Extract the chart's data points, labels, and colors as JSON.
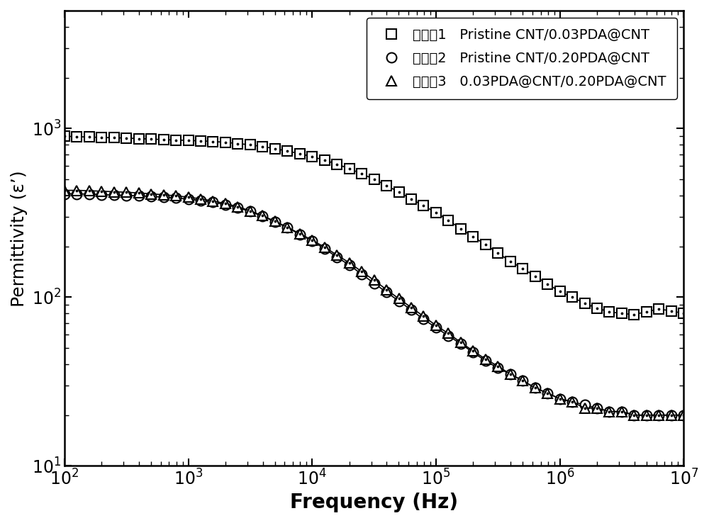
{
  "title": "",
  "xlabel": "Frequency (Hz)",
  "ylabel": "Permittivity (ε’)",
  "xlim": [
    100,
    10000000
  ],
  "ylim": [
    10,
    5000
  ],
  "legend_labels": [
    "实施奡1   Pristine CNT/0.03PDA@CNT",
    "实施奢2   Pristine CNT/0.20PDA@CNT",
    "实施奣3   0.03PDA@CNT/0.20PDA@CNT"
  ],
  "series1_x": [
    100,
    126,
    158,
    200,
    251,
    316,
    398,
    501,
    631,
    794,
    1000,
    1259,
    1585,
    1995,
    2512,
    3162,
    3981,
    5012,
    6310,
    7943,
    10000,
    12589,
    15849,
    19953,
    25119,
    31623,
    39811,
    50119,
    63096,
    79433,
    100000,
    125893,
    158489,
    199526,
    251189,
    316228,
    398107,
    501187,
    630957,
    794328,
    1000000,
    1258925,
    1584893,
    1995262,
    2511886,
    3162278,
    3981072,
    5011872,
    6309573,
    7943282,
    10000000
  ],
  "series1_y": [
    900,
    895,
    890,
    885,
    882,
    878,
    872,
    866,
    860,
    855,
    850,
    845,
    838,
    828,
    815,
    800,
    782,
    760,
    735,
    710,
    680,
    650,
    615,
    578,
    540,
    500,
    460,
    420,
    382,
    348,
    318,
    285,
    255,
    228,
    205,
    183,
    163,
    148,
    133,
    120,
    108,
    100,
    92,
    86,
    82,
    80,
    79,
    82,
    85,
    83,
    80
  ],
  "series2_x": [
    100,
    126,
    158,
    200,
    251,
    316,
    398,
    501,
    631,
    794,
    1000,
    1259,
    1585,
    1995,
    2512,
    3162,
    3981,
    5012,
    6310,
    7943,
    10000,
    12589,
    15849,
    19953,
    25119,
    31623,
    39811,
    50119,
    63096,
    79433,
    100000,
    125893,
    158489,
    199526,
    251189,
    316228,
    398107,
    501187,
    630957,
    794328,
    1000000,
    1258925,
    1584893,
    1995262,
    2511886,
    3162278,
    3981072,
    5011872,
    6309573,
    7943282,
    10000000
  ],
  "series2_y": [
    410,
    410,
    408,
    406,
    403,
    401,
    399,
    396,
    392,
    387,
    382,
    375,
    366,
    354,
    340,
    322,
    302,
    280,
    258,
    236,
    215,
    194,
    173,
    155,
    137,
    121,
    107,
    95,
    84,
    74,
    66,
    59,
    53,
    47,
    42,
    38,
    35,
    32,
    29,
    27,
    25,
    24,
    23,
    22,
    21,
    21,
    20,
    20,
    20,
    20,
    20
  ],
  "series3_x": [
    100,
    126,
    158,
    200,
    251,
    316,
    398,
    501,
    631,
    794,
    1000,
    1259,
    1585,
    1995,
    2512,
    3162,
    3981,
    5012,
    6310,
    7943,
    10000,
    12589,
    15849,
    19953,
    25119,
    31623,
    39811,
    50119,
    63096,
    79433,
    100000,
    125893,
    158489,
    199526,
    251189,
    316228,
    398107,
    501187,
    630957,
    794328,
    1000000,
    1258925,
    1584893,
    1995262,
    2511886,
    3162278,
    3981072,
    5011872,
    6309573,
    7943282,
    10000000
  ],
  "series3_y": [
    430,
    430,
    428,
    425,
    422,
    419,
    415,
    410,
    405,
    399,
    392,
    383,
    372,
    359,
    344,
    325,
    304,
    282,
    260,
    238,
    218,
    198,
    178,
    160,
    142,
    126,
    111,
    98,
    87,
    77,
    68,
    61,
    54,
    48,
    43,
    39,
    35,
    32,
    29,
    27,
    25,
    24,
    22,
    22,
    21,
    21,
    20,
    20,
    20,
    20,
    20
  ],
  "line_color": "#000000",
  "marker_size": 10,
  "xlabel_fontsize": 20,
  "ylabel_fontsize": 18,
  "tick_fontsize": 17,
  "legend_fontsize": 14,
  "background_color": "#ffffff"
}
